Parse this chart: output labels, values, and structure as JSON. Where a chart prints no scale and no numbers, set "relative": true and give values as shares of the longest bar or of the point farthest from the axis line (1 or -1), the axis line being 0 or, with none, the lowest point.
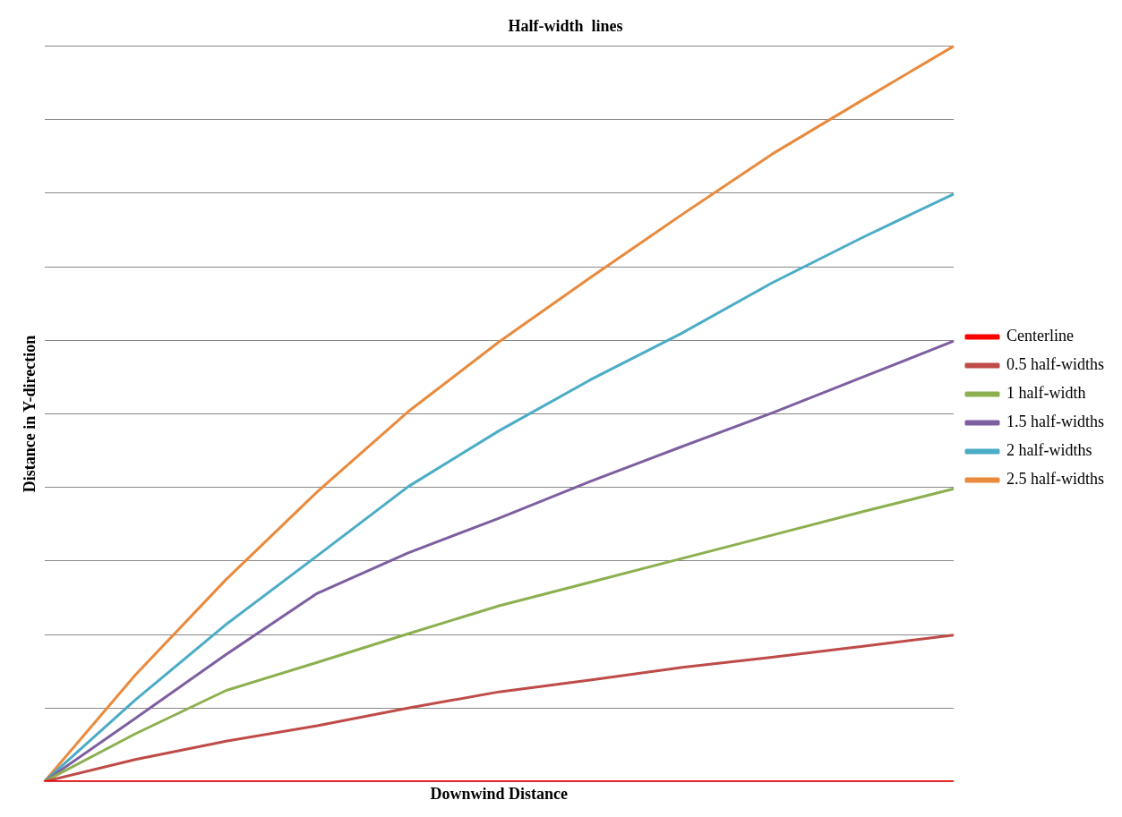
{
  "chart_data": {
    "type": "line",
    "title": "Half-width  lines",
    "xlabel": "Downwind Distance",
    "ylabel": "Distance in Y-direction",
    "relative": true,
    "grid": "y",
    "legend": "right",
    "marker": "none",
    "line_style": "solid",
    "categories": [
      null,
      null,
      null,
      null,
      null,
      null,
      null,
      null,
      null,
      null,
      null
    ],
    "series": [
      {
        "name": "Centerline",
        "color": "#ff0000",
        "values": [
          0,
          0,
          0,
          0,
          0,
          0,
          0,
          0,
          0,
          0,
          0
        ]
      },
      {
        "name": "0.5 half-widths",
        "color": "#be4b48",
        "values": [
          0,
          0.03,
          0.055,
          0.076,
          0.1,
          0.122,
          0.138,
          0.155,
          0.169,
          0.184,
          0.199
        ]
      },
      {
        "name": "1 half-width",
        "color": "#8cb04f",
        "values": [
          0,
          0.065,
          0.124,
          0.162,
          0.201,
          0.239,
          0.271,
          0.303,
          0.335,
          0.367,
          0.398
        ]
      },
      {
        "name": "1.5 half-widths",
        "color": "#7d5fa0",
        "values": [
          0,
          0.086,
          0.173,
          0.256,
          0.311,
          0.358,
          0.408,
          0.455,
          0.501,
          0.55,
          0.599
        ]
      },
      {
        "name": "2 half-widths",
        "color": "#4bacc6",
        "values": [
          0,
          0.111,
          0.214,
          0.307,
          0.401,
          0.477,
          0.546,
          0.609,
          0.678,
          0.74,
          0.799
        ]
      },
      {
        "name": "2.5 half-widths",
        "color": "#e98a3c",
        "values": [
          0,
          0.145,
          0.275,
          0.394,
          0.503,
          0.598,
          0.685,
          0.77,
          0.853,
          0.927,
          1
        ]
      }
    ]
  }
}
